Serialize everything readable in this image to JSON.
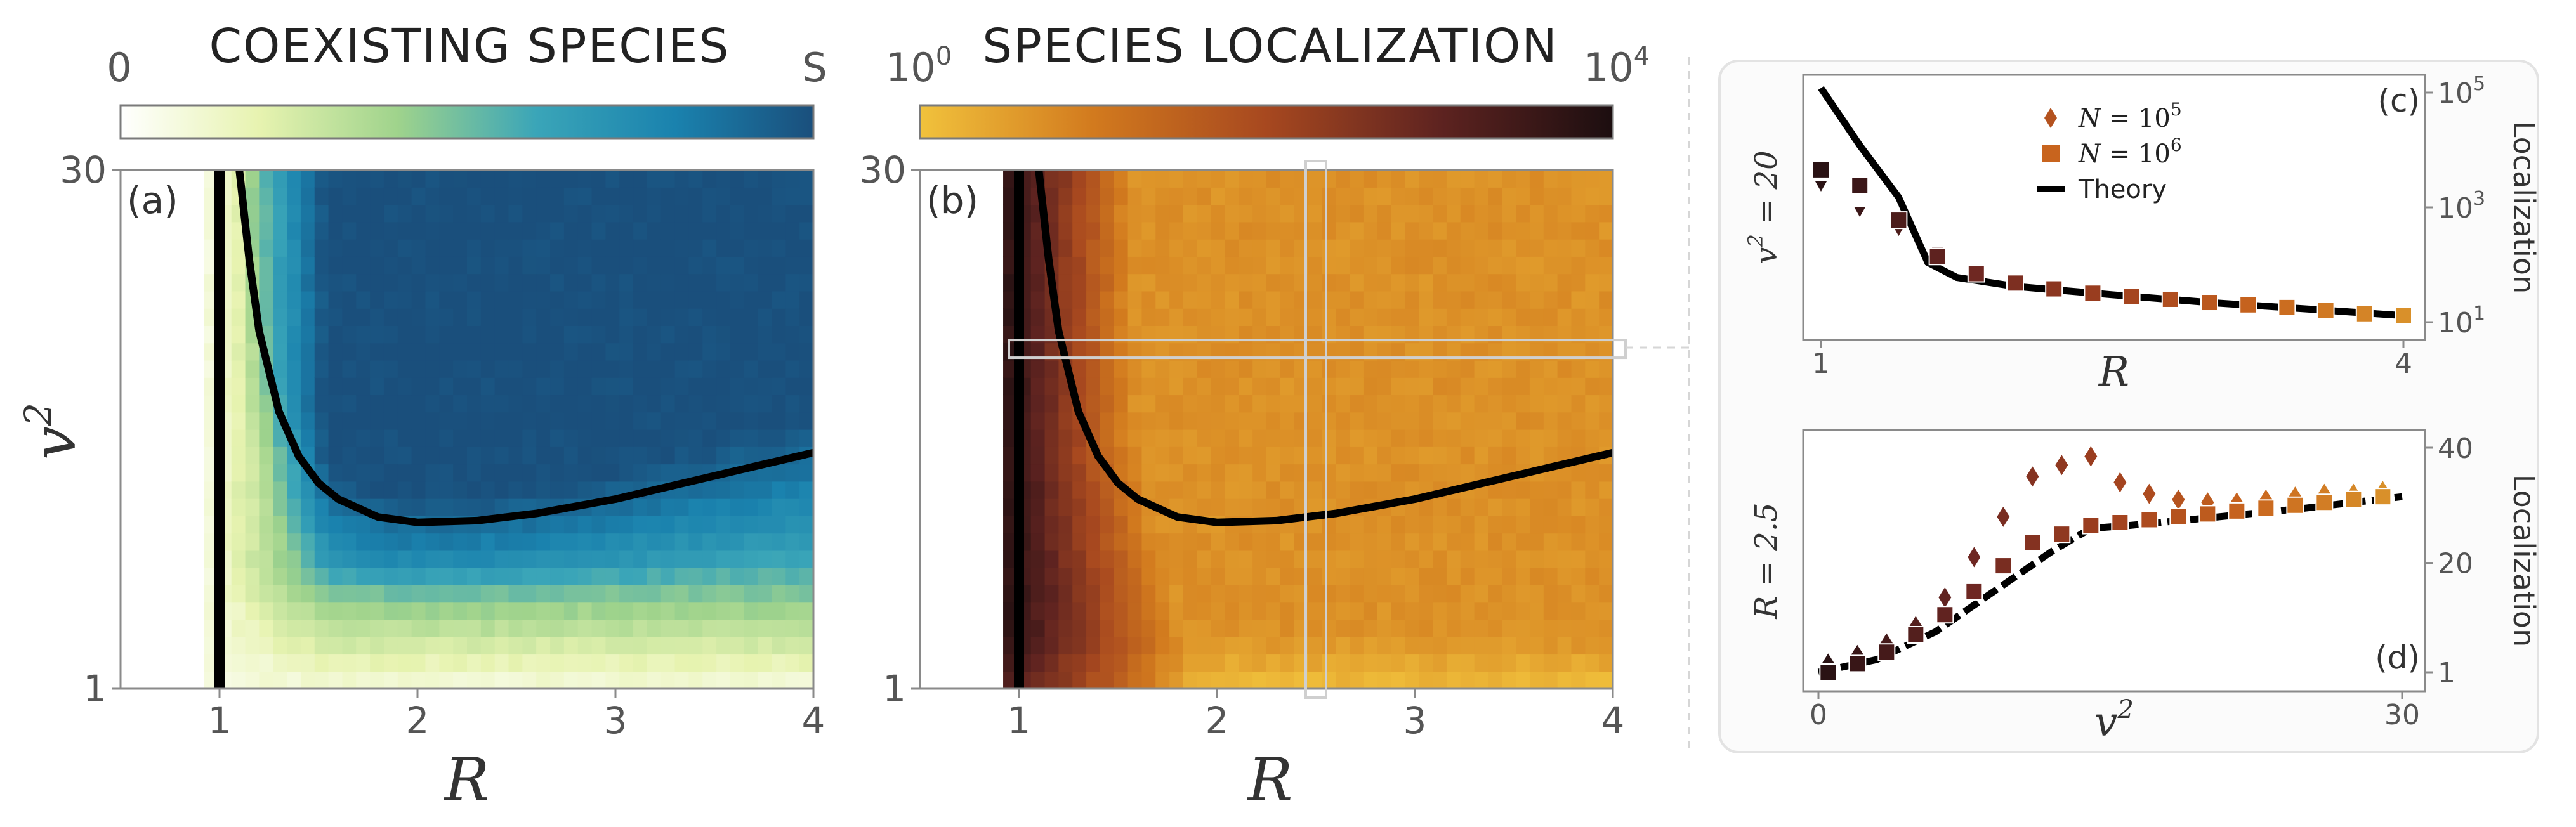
{
  "chart_data": [
    {
      "id": "a",
      "type": "heatmap",
      "title": "COEXISTING SPECIES",
      "panel_label": "(a)",
      "colorbar": {
        "min_label": "0",
        "max_label": "S",
        "colors": [
          "#ffffff",
          "#e7f3b0",
          "#9fd38c",
          "#3aa5b8",
          "#1a82ae",
          "#1a4f7c"
        ]
      },
      "xlabel": "R",
      "ylabel": "v",
      "ylabel_sup": "2",
      "xlim": [
        0.5,
        4.0
      ],
      "ylim": [
        1,
        30
      ],
      "xticks": [
        "1",
        "2",
        "3",
        "4"
      ],
      "yticks": [
        "1",
        "30"
      ],
      "boundary_line": {
        "x": 1.0
      },
      "theory_curve": {
        "x": [
          1.1,
          1.15,
          1.2,
          1.3,
          1.4,
          1.5,
          1.6,
          1.8,
          2.0,
          2.3,
          2.6,
          3.0,
          3.5,
          4.0
        ],
        "y": [
          30,
          25,
          21,
          16.5,
          14,
          12.5,
          11.6,
          10.6,
          10.3,
          10.4,
          10.8,
          11.6,
          12.9,
          14.2
        ]
      }
    },
    {
      "id": "b",
      "type": "heatmap",
      "title": "SPECIES LOCALIZATION",
      "panel_label": "(b)",
      "colorbar": {
        "min_label": "10",
        "min_exp": "0",
        "max_label": "10",
        "max_exp": "4",
        "colors": [
          "#f1c23c",
          "#d27a1e",
          "#a7481f",
          "#5e2320",
          "#1c0e10"
        ]
      },
      "xlabel": "R",
      "xlim": [
        0.5,
        4.0
      ],
      "ylim": [
        1,
        30
      ],
      "xticks": [
        "1",
        "2",
        "3",
        "4"
      ],
      "yticks": [
        "1",
        "30"
      ],
      "boundary_line": {
        "x": 1.0
      },
      "theory_curve": {
        "x": [
          1.1,
          1.15,
          1.2,
          1.3,
          1.4,
          1.5,
          1.6,
          1.8,
          2.0,
          2.3,
          2.6,
          3.0,
          3.5,
          4.0
        ],
        "y": [
          30,
          25,
          21,
          16.5,
          14,
          12.5,
          11.6,
          10.6,
          10.3,
          10.4,
          10.8,
          11.6,
          12.9,
          14.2
        ]
      },
      "highlight": {
        "column_R": 2.5,
        "row_v2": 20
      }
    },
    {
      "id": "c",
      "type": "scatter",
      "panel_label": "(c)",
      "row_label": "v",
      "row_label_sup": "2",
      "row_label_value": " = 20",
      "xlabel": "R",
      "ylabel": "Localization",
      "xlim": [
        1,
        4
      ],
      "ylim": [
        10,
        100000
      ],
      "yscale": "log",
      "xticks": [
        "1",
        "4"
      ],
      "yticks": [
        {
          "base": "10",
          "exp": "1"
        },
        {
          "base": "10",
          "exp": "3"
        },
        {
          "base": "10",
          "exp": "5"
        }
      ],
      "legend": {
        "position": "top-center",
        "entries": [
          {
            "marker": "diamond",
            "label": "N",
            "eq": " = ",
            "base": "10",
            "exp": "5"
          },
          {
            "marker": "square",
            "label": "N",
            "eq": " = ",
            "base": "10",
            "exp": "6"
          },
          {
            "marker": "line",
            "label": "Theory"
          }
        ]
      },
      "series": [
        {
          "name": "N = 10^5",
          "marker": "diamond",
          "x": [
            1.0,
            1.2,
            1.4,
            1.6,
            1.8,
            2.0,
            2.2,
            2.4,
            2.6,
            2.8,
            3.0,
            3.2,
            3.4,
            3.6,
            3.8,
            4.0
          ],
          "y": [
            2500,
            900,
            420,
            180,
            88,
            56,
            44,
            38,
            33,
            29,
            26,
            23,
            21,
            19,
            17,
            15
          ]
        },
        {
          "name": "N = 10^6",
          "marker": "square",
          "x": [
            1.0,
            1.2,
            1.4,
            1.6,
            1.8,
            2.0,
            2.2,
            2.4,
            2.6,
            2.8,
            3.0,
            3.2,
            3.4,
            3.6,
            3.8,
            4.0
          ],
          "y": [
            4500,
            2400,
            600,
            140,
            70,
            48,
            38,
            32,
            28,
            25,
            22,
            20,
            18,
            16,
            14,
            13
          ]
        },
        {
          "name": "Theory",
          "marker": "line",
          "x": [
            1.0,
            1.2,
            1.4,
            1.55,
            1.7,
            2.0,
            2.5,
            3.0,
            3.5,
            4.0
          ],
          "y": [
            120000,
            12000,
            1500,
            110,
            60,
            42,
            30,
            22,
            17,
            13
          ]
        }
      ]
    },
    {
      "id": "d",
      "type": "scatter",
      "panel_label": "(d)",
      "row_label": "R = 2.5",
      "xlabel": "v",
      "xlabel_sup": "2",
      "ylabel": "Localization",
      "xlim": [
        0,
        30
      ],
      "ylim": [
        1,
        40
      ],
      "xticks": [
        "0",
        "30"
      ],
      "yticks": [
        "1",
        "20",
        "40"
      ],
      "series": [
        {
          "name": "N = 10^5",
          "marker": "diamond",
          "x": [
            0.5,
            2,
            3.5,
            5,
            6.5,
            8,
            9.5,
            11,
            12.5,
            14,
            15.5,
            17,
            18.5,
            20,
            21.5,
            23,
            24.5,
            26,
            27.5,
            29
          ],
          "y": [
            2.5,
            4,
            6,
            9,
            14,
            21,
            28,
            35,
            37,
            38.5,
            34,
            32,
            31,
            30.5,
            30.5,
            31,
            31.5,
            32,
            32,
            32.5
          ]
        },
        {
          "name": "N = 10^6",
          "marker": "square",
          "x": [
            0.5,
            2,
            3.5,
            5,
            6.5,
            8,
            9.5,
            11,
            12.5,
            14,
            15.5,
            17,
            18.5,
            20,
            21.5,
            23,
            24.5,
            26,
            27.5,
            29
          ],
          "y": [
            1,
            2.5,
            4.5,
            7.5,
            11,
            15,
            19.5,
            23.5,
            25,
            26.5,
            27,
            27.5,
            28,
            28.5,
            29,
            29.5,
            30,
            30.5,
            31,
            31.5
          ]
        },
        {
          "name": "Theory",
          "marker": "line",
          "x": [
            0,
            3,
            6,
            9,
            12,
            14,
            16,
            20,
            25,
            30
          ],
          "y": [
            1,
            3.2,
            8,
            15,
            22,
            26,
            26.5,
            27.8,
            29.5,
            31.5
          ]
        }
      ]
    }
  ]
}
